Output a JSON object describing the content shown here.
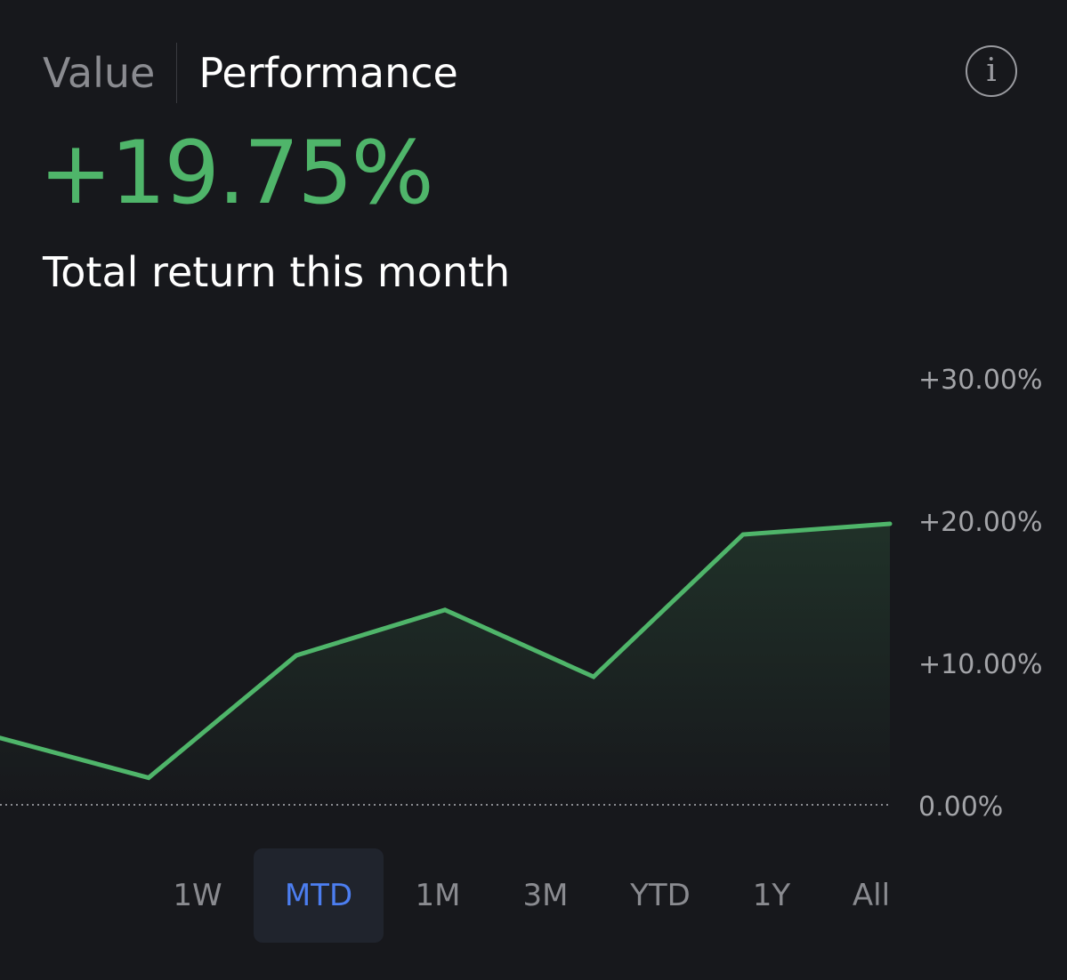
{
  "header": {
    "tabs": [
      {
        "label": "Value",
        "active": false
      },
      {
        "label": "Performance",
        "active": true
      }
    ],
    "info_icon": "info-circle-icon",
    "info_glyph": "i"
  },
  "summary": {
    "total_return": "+19.75%",
    "label": "Total return this month"
  },
  "colors": {
    "positive": "#4fb56a",
    "active_range": "#4c7ef0",
    "background": "#17181c"
  },
  "chart_data": {
    "type": "area",
    "title": "",
    "xlabel": "",
    "ylabel": "",
    "x": [
      1,
      2,
      3,
      4,
      5,
      6,
      7
    ],
    "series": [
      {
        "values": [
          4.7,
          1.9,
          10.5,
          13.7,
          9.0,
          19.0,
          19.75
        ]
      }
    ],
    "ylim": [
      0,
      30
    ],
    "yticks": [
      30,
      20,
      10,
      0
    ],
    "ytick_labels": [
      "+30.00%",
      "+20.00%",
      "+10.00%",
      "0.00%"
    ],
    "baseline": 0,
    "axis_position": "right",
    "grid": false,
    "legend": "none"
  },
  "ranges": [
    {
      "label": "1W",
      "active": false
    },
    {
      "label": "MTD",
      "active": true
    },
    {
      "label": "1M",
      "active": false
    },
    {
      "label": "3M",
      "active": false
    },
    {
      "label": "YTD",
      "active": false
    },
    {
      "label": "1Y",
      "active": false
    },
    {
      "label": "All",
      "active": false
    }
  ]
}
